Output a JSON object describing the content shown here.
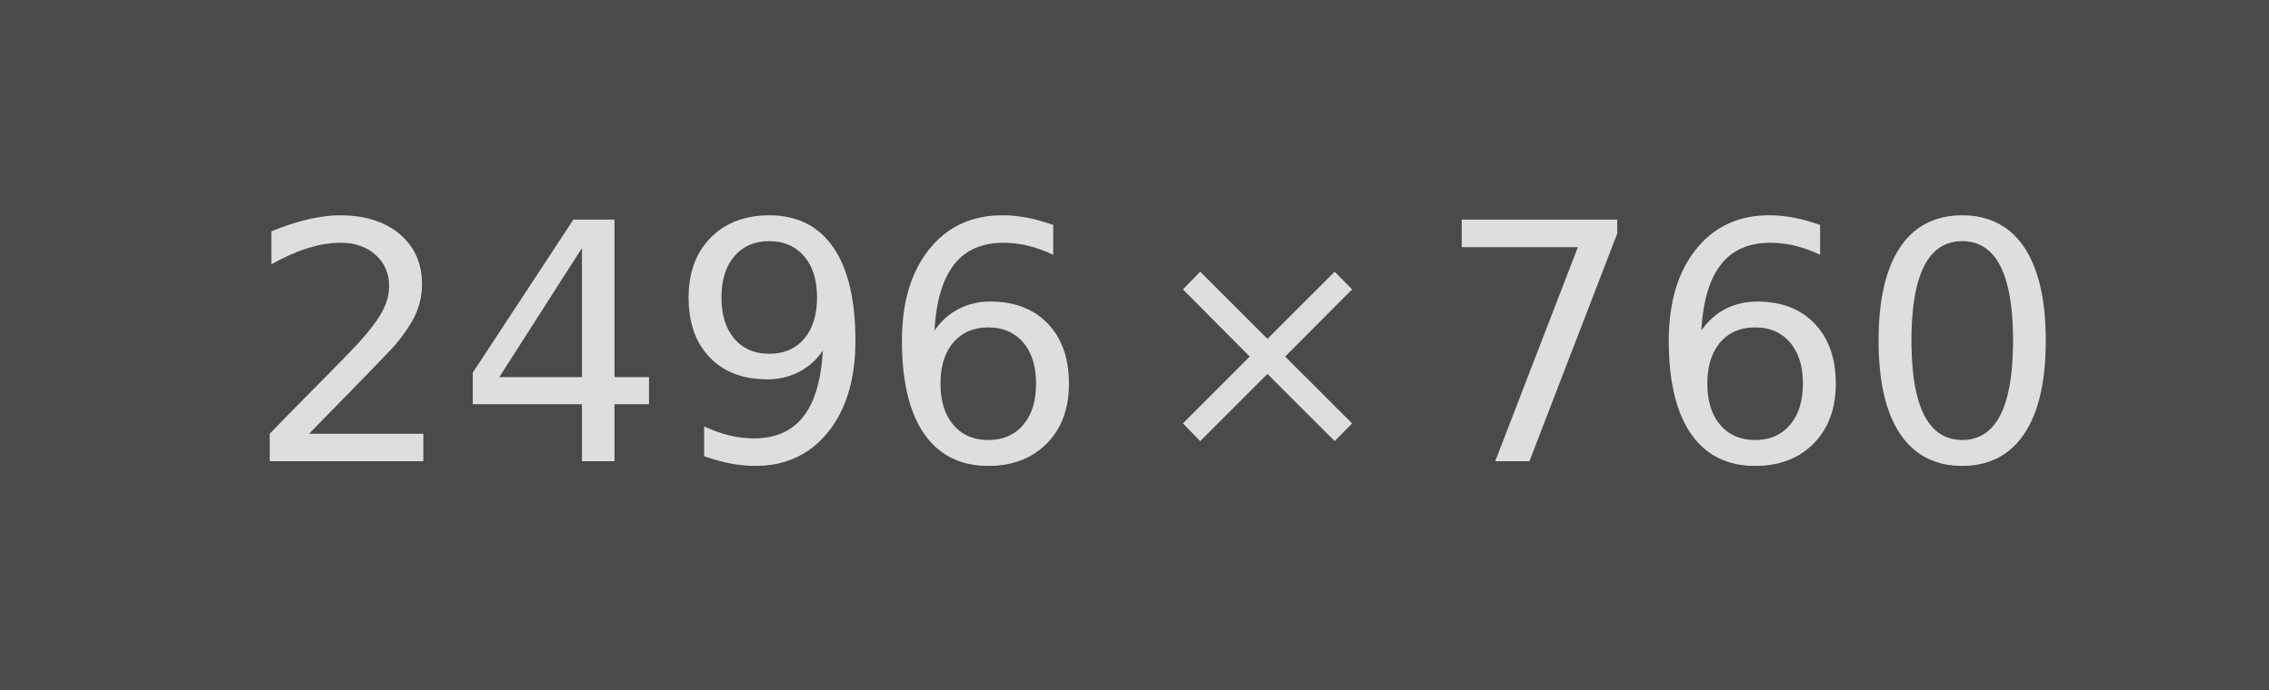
{
  "placeholder": {
    "width_text": "2496",
    "separator": "×",
    "height_text": "760",
    "colors": {
      "background": "#4a4a4a",
      "text": "#dedede"
    }
  }
}
